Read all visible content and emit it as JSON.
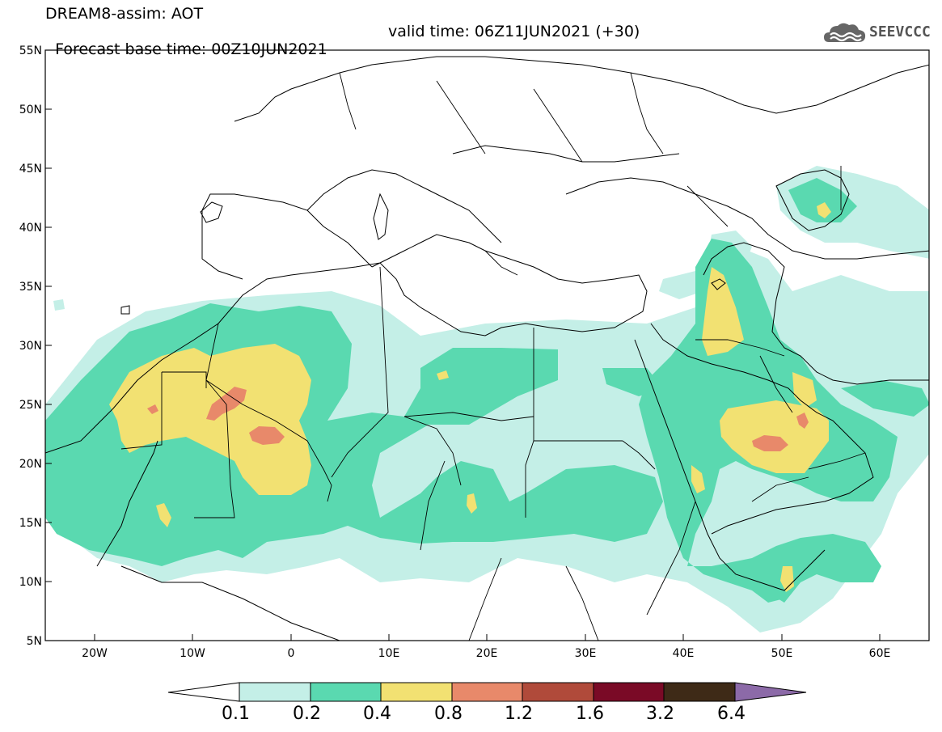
{
  "header": {
    "title_line1": "DREAM8-assim: AOT",
    "base_time": "Forecast base time: 00Z10JUN2021",
    "valid_time": "valid time: 06Z11JUN2021 (+30)"
  },
  "logo": {
    "text": "SEEVCCC",
    "icon": "cloud-icon"
  },
  "map": {
    "projection": "lat-lon",
    "lon_range": [
      -25,
      65
    ],
    "lat_range": [
      5,
      55
    ],
    "lat_labels": [
      "55N",
      "50N",
      "45N",
      "40N",
      "35N",
      "30N",
      "25N",
      "20N",
      "15N",
      "10N",
      "5N"
    ],
    "lon_labels": [
      "20W",
      "10W",
      "0",
      "10E",
      "20E",
      "30E",
      "40E",
      "50E",
      "60E"
    ]
  },
  "colorbar": {
    "levels": [
      "0.1",
      "0.2",
      "0.4",
      "0.8",
      "1.2",
      "1.6",
      "3.2",
      "6.4"
    ],
    "colors": [
      "#ffffff",
      "#c4efe7",
      "#5ad9b0",
      "#f2e172",
      "#e8896a",
      "#b04a3a",
      "#7a0a26",
      "#3e2a17",
      "#8c6aa8"
    ]
  },
  "field_colors": {
    "c1": "#c4efe7",
    "c2": "#5ad9b0",
    "c3": "#f2e172",
    "c4": "#e8896a"
  }
}
